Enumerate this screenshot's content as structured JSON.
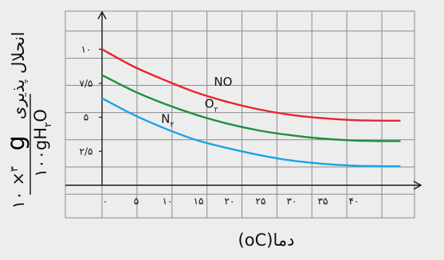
{
  "chart_data": {
    "type": "line",
    "xlabel": "(oC)دما",
    "ylabel": {
      "top": "انحلال پذیری",
      "numerator": "g",
      "exponent": "۳",
      "factor": "۱۰ ×",
      "denominator_main": "۱۰۰gH",
      "denominator_sub": "۲",
      "denominator_end": "O"
    },
    "x_ticks": [
      "۰",
      "۵",
      "۱۰",
      "۱۵",
      "۲۰",
      "۲۵",
      "۳۰",
      "۳۵",
      "۴۰"
    ],
    "x_tick_values": [
      0,
      5,
      10,
      15,
      20,
      25,
      30,
      35,
      40
    ],
    "y_ticks": [
      "۲/۵",
      "۵",
      "۷/۵",
      "۱۰"
    ],
    "y_tick_values": [
      2.5,
      5,
      7.5,
      10
    ],
    "xlim": [
      0,
      50
    ],
    "ylim": [
      0,
      12.5
    ],
    "grid": true,
    "series": [
      {
        "name": "NO",
        "label_main": "NO",
        "label_sub": "",
        "color": "#e8262b",
        "x": [
          0,
          5,
          10,
          15,
          20,
          25,
          30,
          35,
          40,
          45,
          48
        ],
        "y": [
          10.0,
          8.75,
          7.75,
          6.85,
          6.15,
          5.6,
          5.2,
          4.95,
          4.8,
          4.75,
          4.75
        ]
      },
      {
        "name": "O₂",
        "label_main": "O",
        "label_sub": "۲",
        "color": "#1f8f3a",
        "x": [
          0,
          5,
          10,
          15,
          20,
          25,
          30,
          35,
          40,
          45,
          48
        ],
        "y": [
          8.1,
          6.95,
          6.0,
          5.2,
          4.55,
          4.05,
          3.7,
          3.45,
          3.3,
          3.25,
          3.25
        ]
      },
      {
        "name": "N₂",
        "label_main": "N",
        "label_sub": "۲",
        "color": "#1aa3e6",
        "x": [
          0,
          5,
          10,
          15,
          20,
          25,
          30,
          35,
          40,
          45,
          48
        ],
        "y": [
          6.4,
          5.2,
          4.2,
          3.35,
          2.75,
          2.25,
          1.85,
          1.6,
          1.45,
          1.4,
          1.4
        ]
      }
    ]
  }
}
